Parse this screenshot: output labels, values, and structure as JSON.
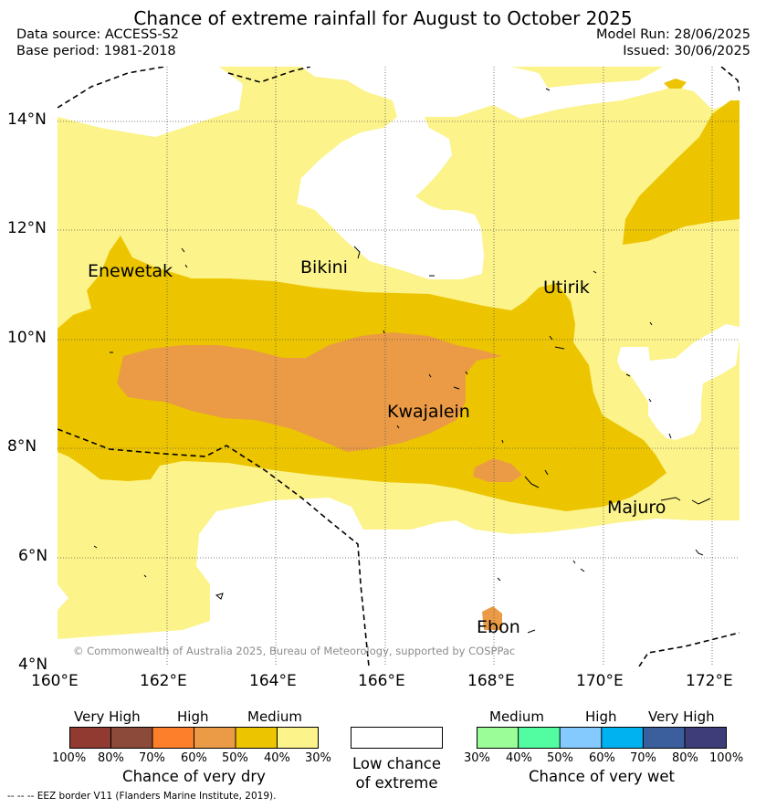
{
  "title": "Chance of extreme rainfall for August to October 2025",
  "header": {
    "data_source": "Data source: ACCESS-S2",
    "base_period": "Base period: 1981-2018",
    "model_run": "Model Run: 28/06/2025",
    "issued": "Issued: 30/06/2025"
  },
  "map": {
    "lat_ticks": [
      "14°N",
      "12°N",
      "10°N",
      "8°N",
      "6°N",
      "4°N"
    ],
    "lon_ticks": [
      "160°E",
      "162°E",
      "164°E",
      "166°E",
      "168°E",
      "170°E",
      "172°E"
    ],
    "places": {
      "enewetak": "Enewetak",
      "bikini": "Bikini",
      "utirik": "Utirik",
      "kwajalein": "Kwajalein",
      "majuro": "Majuro",
      "ebon": "Ebon"
    },
    "copyright": "© Commonwealth of Australia 2025, Bureau of Meteorology, supported by COSPPac",
    "colors": {
      "medium_dry_40_30": "#fcf38a",
      "medium_dry_50_40": "#ecc500",
      "high_dry_60_50": "#eb9b45",
      "high_dry_70_60": "#fe7f2b"
    }
  },
  "legend": {
    "dry": {
      "groups": [
        "Very High",
        "High",
        "Medium"
      ],
      "colors": [
        "#913a32",
        "#8b4a3a",
        "#fe7f2b",
        "#eb9b45",
        "#ecc500",
        "#fcf38a"
      ],
      "ticks": [
        "100%",
        "80%",
        "70%",
        "60%",
        "50%",
        "40%",
        "30%"
      ],
      "caption": "Chance of very dry"
    },
    "low": {
      "line1": "Low chance",
      "line2": "of extreme"
    },
    "wet": {
      "groups": [
        "Medium",
        "High",
        "Very High"
      ],
      "colors": [
        "#9bfd98",
        "#52fca1",
        "#84cafe",
        "#00b2ef",
        "#3a5f9c",
        "#3f3c7a"
      ],
      "ticks": [
        "30%",
        "40%",
        "50%",
        "60%",
        "70%",
        "80%",
        "100%"
      ],
      "caption": "Chance of very wet"
    }
  },
  "footnote": "-- -- -- EEZ border V11 (Flanders Marine Institute, 2019)."
}
